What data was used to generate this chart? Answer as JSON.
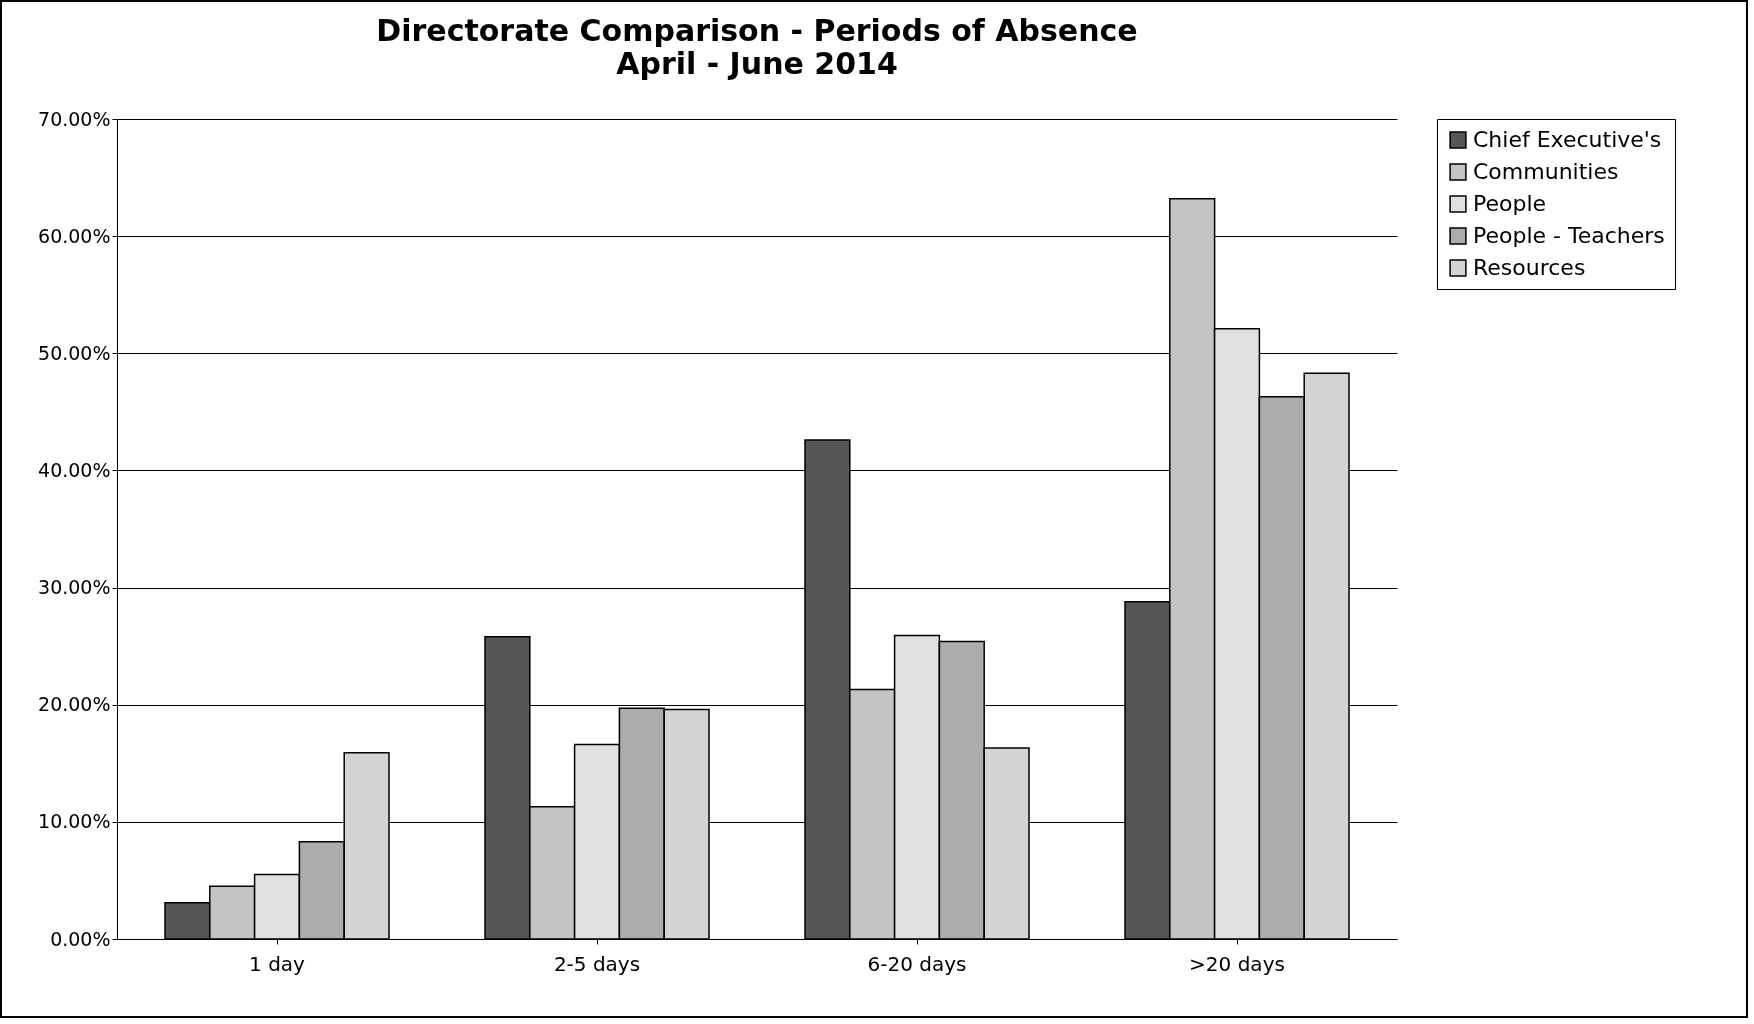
{
  "chart_data": {
    "type": "bar",
    "title": "Directorate Comparison - Periods of Absence",
    "subtitle": "April - June 2014",
    "categories": [
      "1 day",
      "2-5 days",
      "6-20 days",
      ">20 days"
    ],
    "series": [
      {
        "name": "Chief Executive's",
        "color": "#555555",
        "values": [
          3.1,
          25.8,
          42.6,
          28.8
        ]
      },
      {
        "name": "Communities",
        "color": "#c4c4c4",
        "values": [
          4.5,
          11.3,
          21.3,
          63.2
        ]
      },
      {
        "name": "People",
        "color": "#e0e0e0",
        "values": [
          5.5,
          16.6,
          25.9,
          52.1
        ]
      },
      {
        "name": "People - Teachers",
        "color": "#acacac",
        "values": [
          8.3,
          19.7,
          25.4,
          46.3
        ]
      },
      {
        "name": "Resources",
        "color": "#d4d4d4",
        "values": [
          15.9,
          19.6,
          16.3,
          48.3
        ]
      }
    ],
    "ylim": [
      0,
      70
    ],
    "yticks": [
      {
        "value": 0,
        "label": "0.00%"
      },
      {
        "value": 10,
        "label": "10.00%"
      },
      {
        "value": 20,
        "label": "20.00%"
      },
      {
        "value": 30,
        "label": "30.00%"
      },
      {
        "value": 40,
        "label": "40.00%"
      },
      {
        "value": 50,
        "label": "50.00%"
      },
      {
        "value": 60,
        "label": "60.00%"
      },
      {
        "value": 70,
        "label": "70.00%"
      }
    ],
    "grid": "y",
    "legend": "right"
  }
}
